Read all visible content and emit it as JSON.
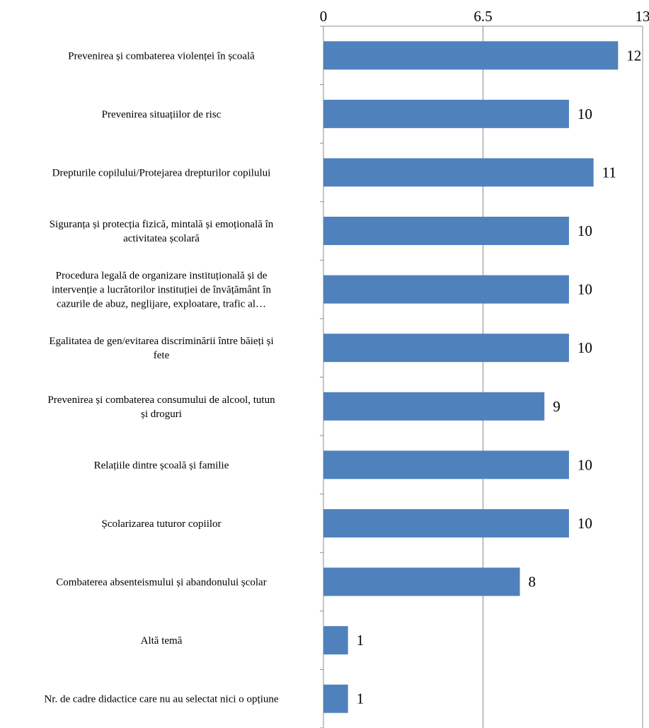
{
  "chart_data": {
    "type": "bar",
    "orientation": "horizontal",
    "xlim": [
      0,
      13
    ],
    "x_ticks": [
      "0",
      "6.5",
      "13"
    ],
    "grid": true,
    "bar_color": "#4F81BD",
    "categories": [
      [
        "Prevenirea și combaterea violenței în școală"
      ],
      [
        "Prevenirea situațiilor de risc"
      ],
      [
        "Drepturile copilului/Protejarea drepturilor copilului"
      ],
      [
        "Siguranța și protecția fizică, mintală și emoțională în",
        "activitatea școlară"
      ],
      [
        "Procedura legală de organizare instituțională și de",
        "intervenție a lucrătorilor instituției de învățământ în",
        "cazurile de abuz, neglijare, exploatare, trafic al…"
      ],
      [
        "Egalitatea de gen/evitarea discriminării între băieți și",
        "fete"
      ],
      [
        "Prevenirea și combaterea consumului de alcool, tutun",
        "și droguri"
      ],
      [
        "Relațiile dintre școală și familie"
      ],
      [
        "Școlarizarea tuturor copiilor"
      ],
      [
        "Combaterea absenteismului și  abandonului școlar"
      ],
      [
        "Altă temă"
      ],
      [
        "Nr. de cadre didactice care nu au selectat nici o opțiune"
      ]
    ],
    "values": [
      12,
      10,
      11,
      10,
      10,
      10,
      9,
      10,
      10,
      8,
      1,
      1
    ]
  }
}
